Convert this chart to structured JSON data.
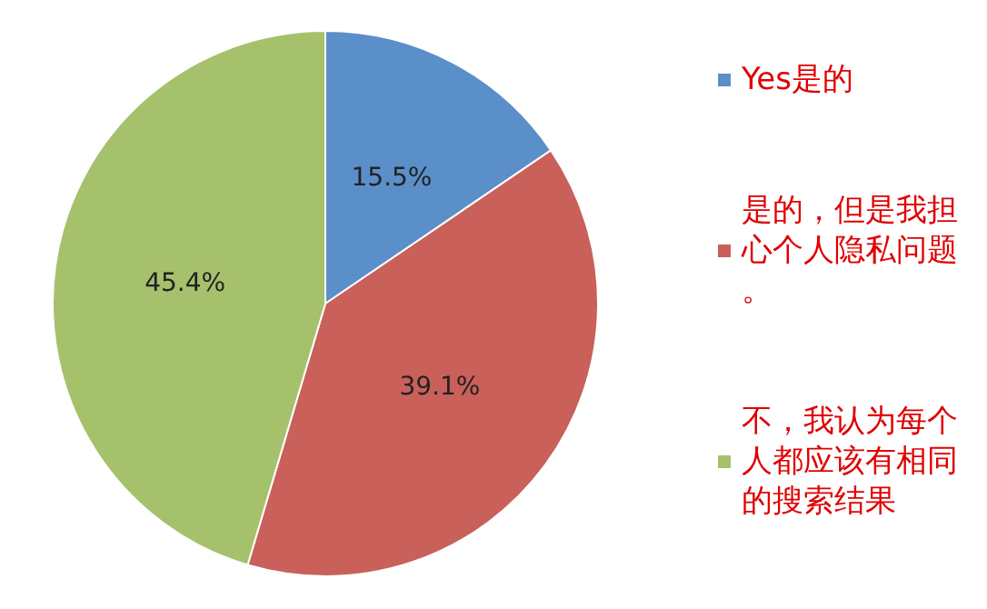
{
  "chart_data": {
    "type": "pie",
    "categories": [
      "Yes是的",
      "是的，但是我担心个人隐私问题。",
      "不，我认为每个人都应该有相同的搜索结果"
    ],
    "values": [
      15.5,
      39.1,
      45.4
    ],
    "value_labels": [
      "15.5%",
      "39.1%",
      "45.4%"
    ],
    "colors": [
      "#5b8fc9",
      "#c9605a",
      "#a6c16c"
    ],
    "legend": "right"
  }
}
